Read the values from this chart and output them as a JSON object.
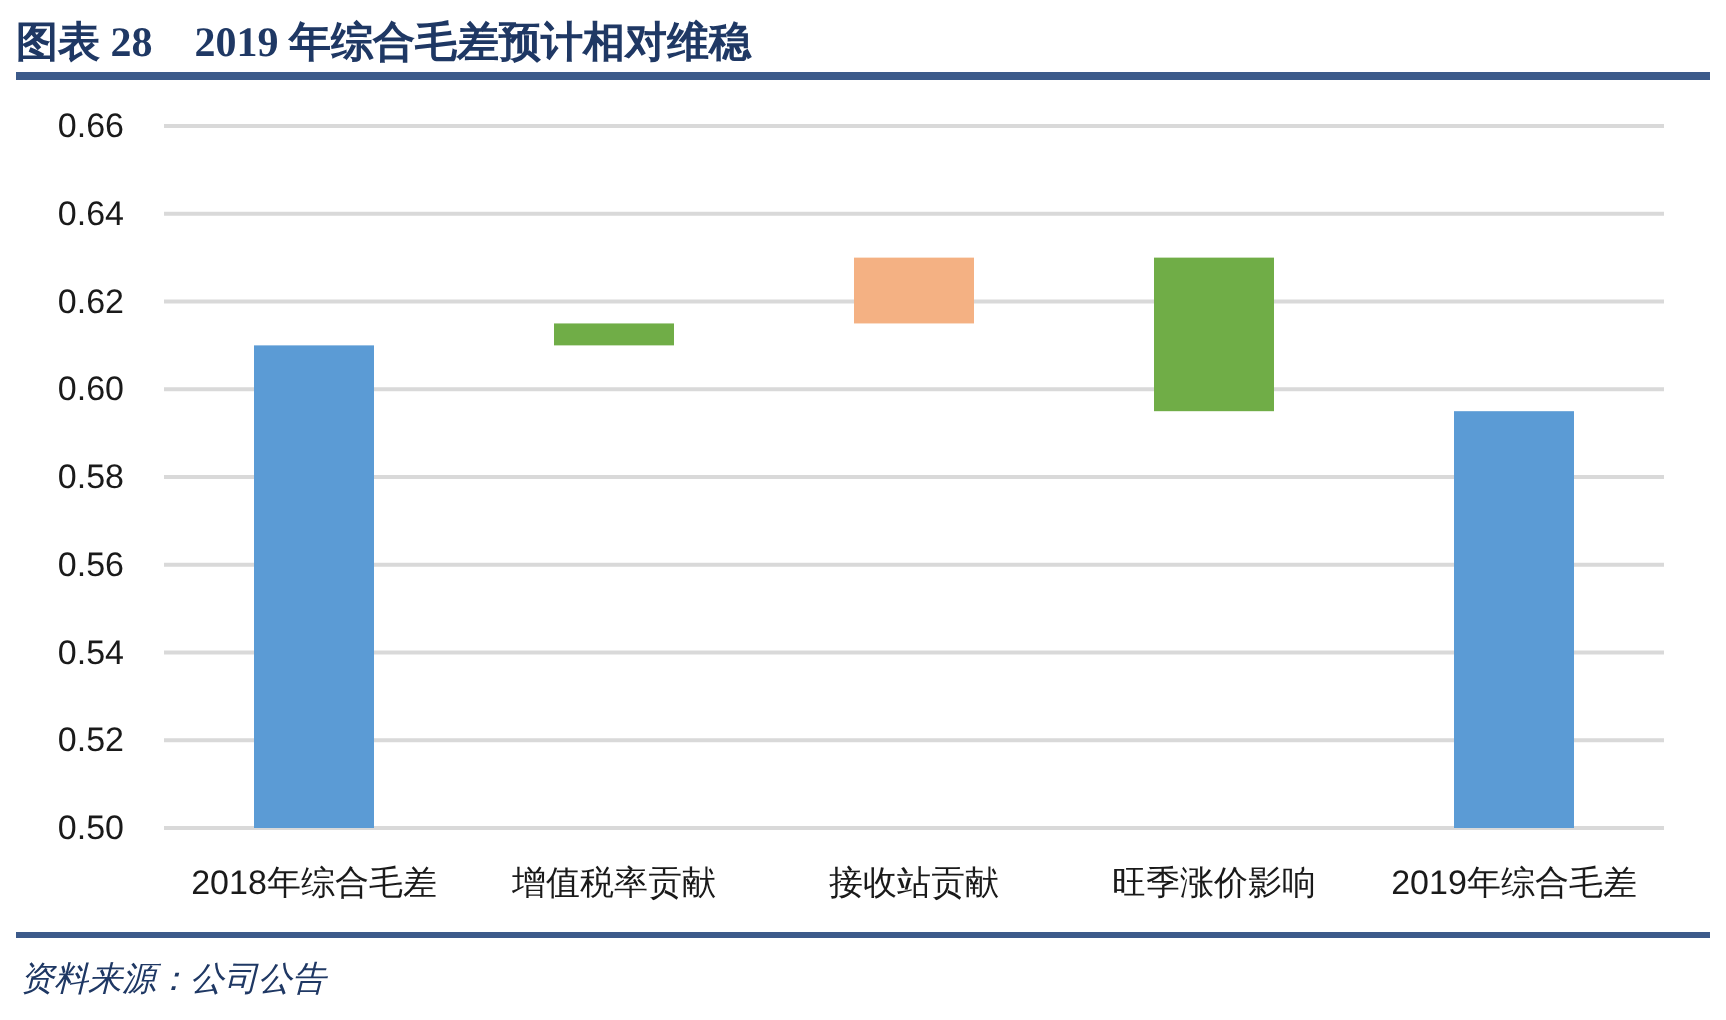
{
  "chart_data": {
    "type": "bar",
    "title": "图表 28　2019 年综合毛差预计相对维稳",
    "categories": [
      "2018年综合毛差",
      "增值税率贡献",
      "接收站贡献",
      "旺季涨价影响",
      "2019年综合毛差"
    ],
    "values": [
      0.61,
      0.005,
      0.015,
      -0.035,
      0.595
    ],
    "base": [
      null,
      0.61,
      0.615,
      0.63,
      null
    ],
    "colors": [
      "#5b9bd5",
      "#70ad47",
      "#f4b183",
      "#70ad47",
      "#5b9bd5"
    ],
    "ylim": [
      0.5,
      0.66
    ],
    "yticks": [
      {
        "value": 0.5,
        "label": "0.50"
      },
      0.52,
      0.54,
      0.56,
      0.58,
      {
        "value": 0.6,
        "label": "0.60"
      },
      0.62,
      0.64,
      0.66
    ],
    "grid": "y",
    "annotations": [
      "资料来源：公司公告"
    ]
  }
}
